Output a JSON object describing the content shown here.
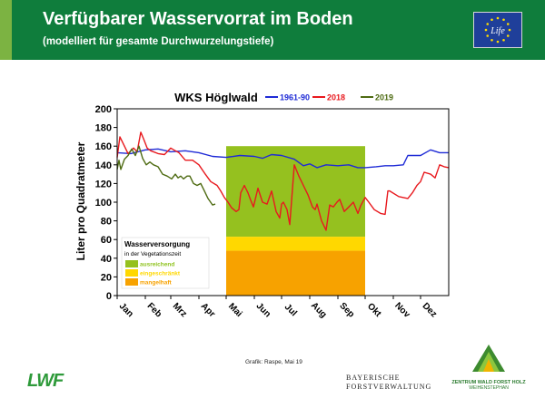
{
  "header": {
    "title": "Verfügbarer Wasservorrat im Boden",
    "subtitle": "(modelliert für gesamte Durchwurzelungstiefe)",
    "eu_logo_text": "Life"
  },
  "chart_data": {
    "type": "line",
    "title": "WKS Höglwald",
    "ylabel": "Liter pro Quadratmeter",
    "xlabel": "",
    "ylim": [
      0,
      200
    ],
    "yticks": [
      0,
      20,
      40,
      60,
      80,
      100,
      120,
      140,
      160,
      180,
      200
    ],
    "xlim": [
      0,
      365
    ],
    "months": [
      "Jan",
      "Feb",
      "Mrz",
      "Apr",
      "Mai",
      "Jun",
      "Jul",
      "Aug",
      "Sep",
      "Okt",
      "Nov",
      "Dez"
    ],
    "month_starts": [
      0,
      31,
      59,
      90,
      120,
      151,
      181,
      212,
      243,
      273,
      304,
      334
    ],
    "legend_position": "top",
    "grid": false,
    "series": [
      {
        "name": "1961-90",
        "color": "#1f2bd6",
        "x": [
          0,
          15,
          31,
          45,
          59,
          75,
          90,
          105,
          120,
          135,
          151,
          160,
          170,
          181,
          195,
          205,
          212,
          220,
          230,
          243,
          255,
          265,
          273,
          285,
          295,
          304,
          315,
          320,
          334,
          345,
          355,
          365
        ],
        "y": [
          153,
          152,
          156,
          157,
          154,
          155,
          153,
          149,
          148,
          150,
          149,
          147,
          151,
          150,
          146,
          139,
          141,
          137,
          140,
          139,
          140,
          137,
          137,
          138,
          139,
          139,
          140,
          150,
          150,
          156,
          153,
          153
        ]
      },
      {
        "name": "2018",
        "color": "#e8191e",
        "x": [
          0,
          3,
          8,
          12,
          18,
          22,
          26,
          29,
          33,
          37,
          45,
          52,
          59,
          64,
          68,
          75,
          83,
          90,
          97,
          103,
          110,
          114,
          118,
          122,
          126,
          131,
          134,
          136,
          140,
          144,
          147,
          150,
          155,
          160,
          165,
          170,
          175,
          179,
          181,
          183,
          187,
          190,
          195,
          200,
          205,
          210,
          215,
          218,
          220,
          225,
          230,
          234,
          238,
          242,
          245,
          250,
          255,
          260,
          265,
          268,
          273,
          277,
          283,
          290,
          295,
          298,
          300,
          310,
          320,
          325,
          330,
          334,
          338,
          345,
          350,
          355,
          360,
          365
        ],
        "y": [
          148,
          170,
          160,
          152,
          158,
          154,
          175,
          168,
          158,
          155,
          152,
          151,
          158,
          155,
          153,
          145,
          145,
          140,
          130,
          122,
          118,
          112,
          105,
          100,
          94,
          90,
          92,
          110,
          118,
          110,
          102,
          95,
          115,
          100,
          98,
          112,
          90,
          83,
          98,
          100,
          92,
          76,
          140,
          128,
          118,
          108,
          95,
          92,
          98,
          80,
          70,
          97,
          95,
          100,
          103,
          90,
          95,
          100,
          88,
          96,
          105,
          100,
          92,
          88,
          87,
          112,
          112,
          106,
          104,
          110,
          118,
          122,
          132,
          130,
          126,
          140,
          138,
          137
        ]
      },
      {
        "name": "2019",
        "color": "#4e6b12",
        "x": [
          0,
          2,
          4,
          8,
          12,
          16,
          20,
          24,
          28,
          32,
          36,
          40,
          45,
          50,
          55,
          60,
          64,
          67,
          70,
          73,
          77,
          80,
          84,
          88,
          92,
          96,
          100,
          105,
          108
        ],
        "y": [
          135,
          145,
          135,
          146,
          150,
          157,
          150,
          160,
          147,
          140,
          143,
          140,
          138,
          130,
          128,
          125,
          130,
          126,
          128,
          125,
          128,
          128,
          120,
          118,
          120,
          112,
          104,
          97,
          98
        ]
      }
    ],
    "bands": {
      "x_range": [
        120,
        273
      ],
      "levels": [
        {
          "label": "ausreichend",
          "from": 63,
          "to": 160,
          "color": "#95c11f",
          "text_color": "#8fc31f"
        },
        {
          "label": "eingeschränkt",
          "from": 48,
          "to": 63,
          "color": "#ffd800",
          "text_color": "#ffd800"
        },
        {
          "label": "mangelhaft",
          "from": 0,
          "to": 48,
          "color": "#f7a200",
          "text_color": "#f7a200"
        }
      ]
    },
    "inset_legend": {
      "title": "Wasserversorgung",
      "subtitle": "in der Vegetationszeit"
    }
  },
  "footer": {
    "credit": "Grafik: Raspe, Mai 19",
    "lwf": "LWF",
    "bfv_line1": "BAYERISCHE",
    "bfv_line2": "FORSTVERWALTUNG",
    "zwfh_line1": "ZENTRUM WALD FORST HOLZ",
    "zwfh_line2": "WEIHENSTEPHAN"
  }
}
